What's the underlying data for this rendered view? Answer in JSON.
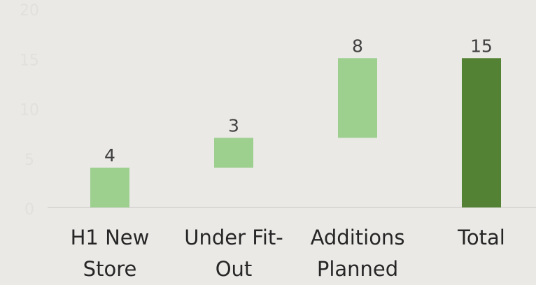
{
  "chart_data": {
    "type": "waterfall",
    "categories": [
      "H1 New Store",
      "Under Fit-Out",
      "Additions Planned",
      "Total"
    ],
    "values": [
      4,
      3,
      8,
      15
    ],
    "is_total": [
      false,
      false,
      false,
      true
    ],
    "colors": [
      "#9dd08f",
      "#9dd08f",
      "#9dd08f",
      "#548235"
    ],
    "ylim": [
      0,
      20
    ],
    "yticks": [
      0,
      5,
      10,
      15,
      20
    ]
  }
}
